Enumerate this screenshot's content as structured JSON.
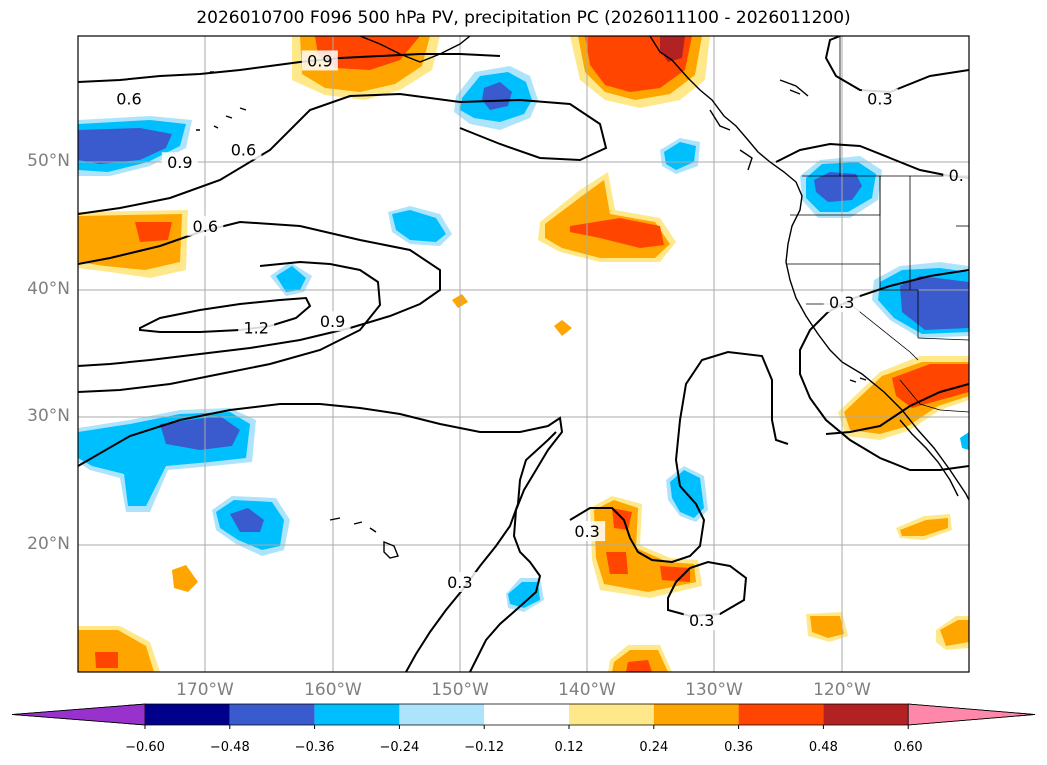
{
  "title": "2026010700 F096 500 hPa PV, precipitation PC (2026011100 - 2026011200)",
  "map": {
    "lat_labels": [
      "50°N",
      "40°N",
      "30°N",
      "20°N"
    ],
    "lon_labels": [
      "170°W",
      "160°W",
      "150°W",
      "140°W",
      "130°W",
      "120°W"
    ],
    "contour_labels": [
      {
        "text": "0.6",
        "lon": -176,
        "lat": 55
      },
      {
        "text": "0.9",
        "lon": -161,
        "lat": 58
      },
      {
        "text": "0.3",
        "lon": -117,
        "lat": 55
      },
      {
        "text": "0.9",
        "lon": -172,
        "lat": 50
      },
      {
        "text": "0.6",
        "lon": -167,
        "lat": 51
      },
      {
        "text": "0.6",
        "lon": -170,
        "lat": 45
      },
      {
        "text": "1.2",
        "lon": -166,
        "lat": 37
      },
      {
        "text": "0.9",
        "lon": -160,
        "lat": 37.5
      },
      {
        "text": "0.3",
        "lon": -120,
        "lat": 39
      },
      {
        "text": "0.3",
        "lon": -140,
        "lat": 21
      },
      {
        "text": "0.3",
        "lon": -150,
        "lat": 17
      },
      {
        "text": "0.3",
        "lon": -131,
        "lat": 14
      },
      {
        "text": "0.",
        "lon": -111,
        "lat": 49
      }
    ]
  },
  "colorbar": {
    "ticks": [
      "−0.60",
      "−0.48",
      "−0.36",
      "−0.24",
      "−0.12",
      "0.12",
      "0.24",
      "0.36",
      "0.48",
      "0.60"
    ],
    "colors": [
      "#9932cc",
      "#00008b",
      "#3a5bcd",
      "#00bfff",
      "#aee4fb",
      "#ffffff",
      "#ffe88a",
      "#ffa500",
      "#ff4500",
      "#b22222",
      "#ff88aa"
    ]
  }
}
